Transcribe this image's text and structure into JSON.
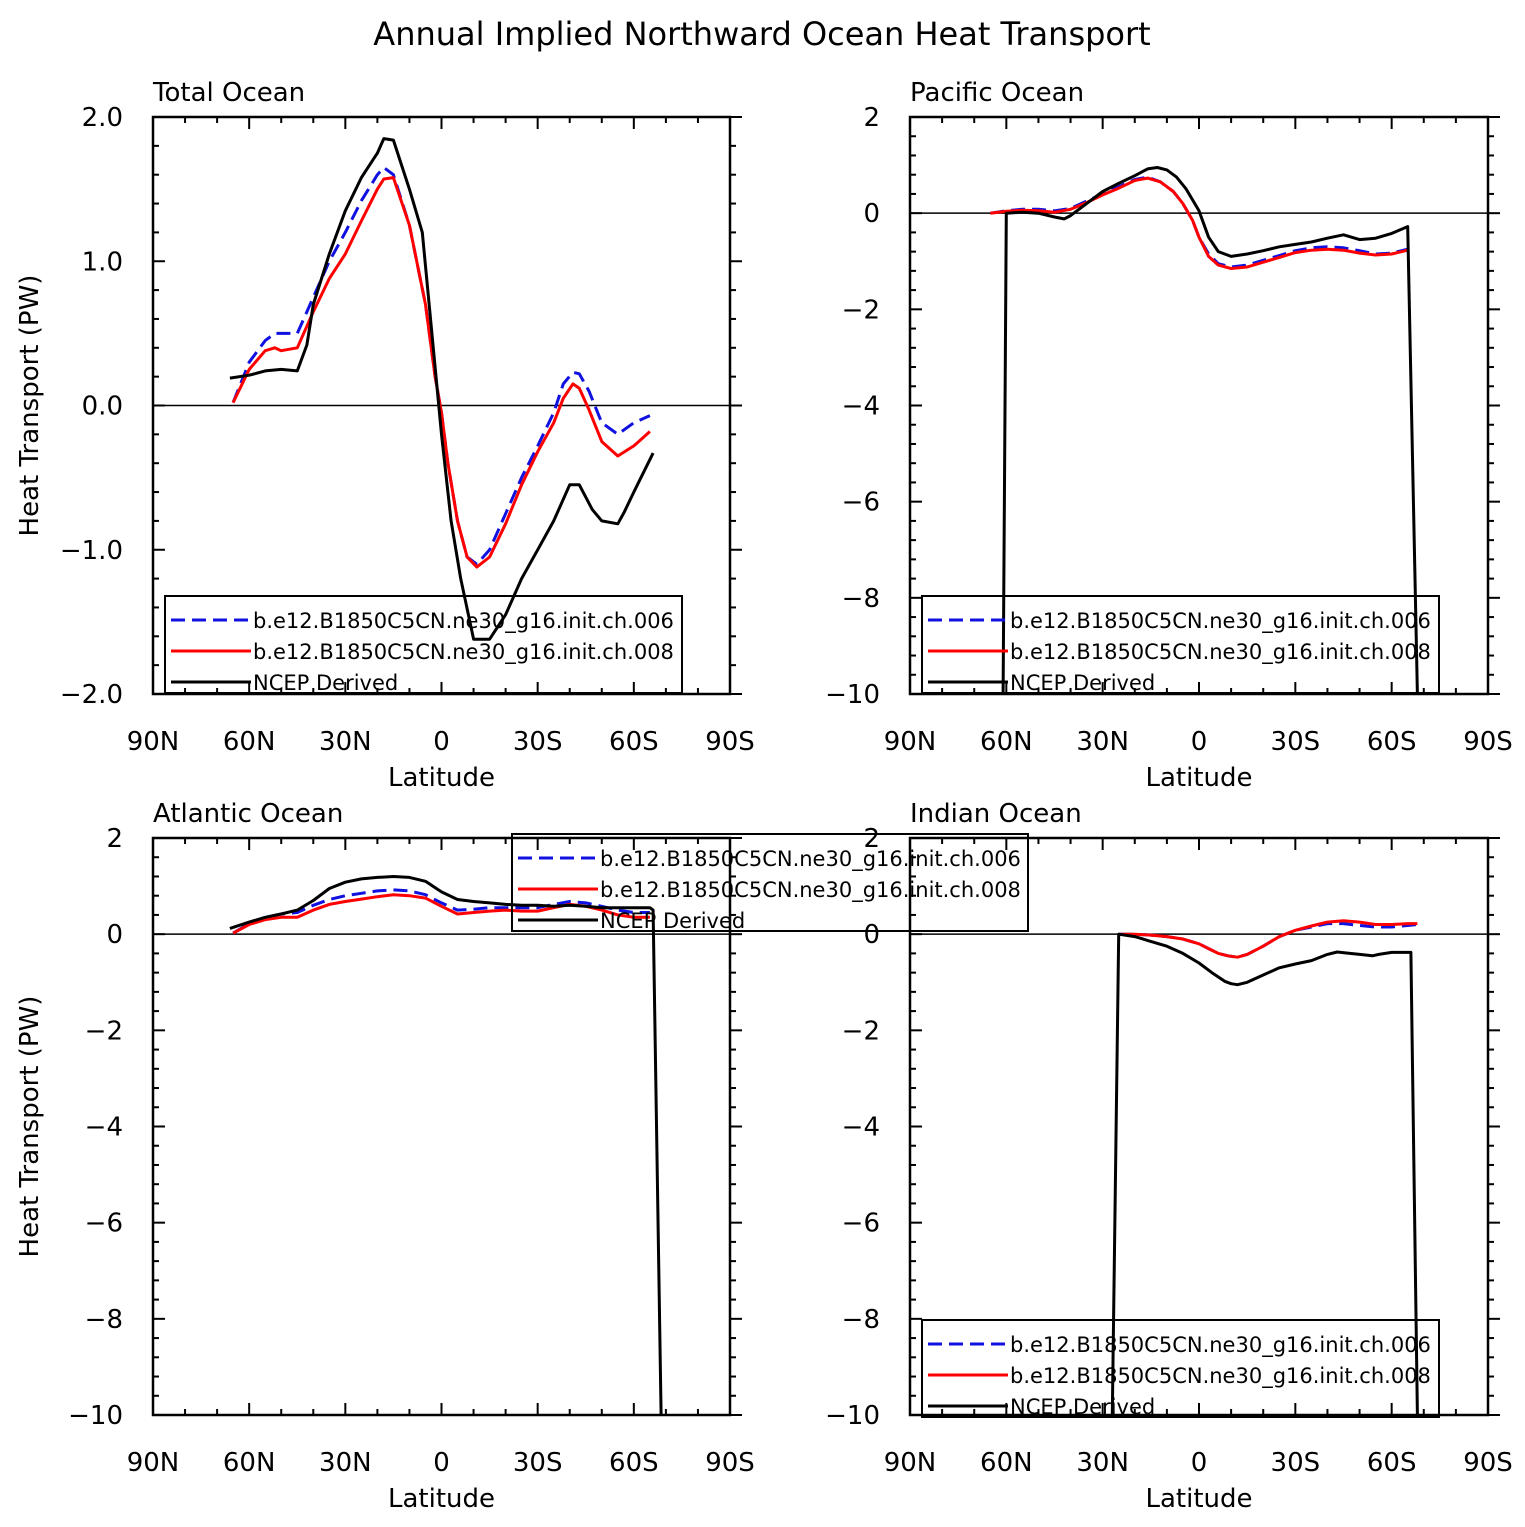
{
  "title": "Annual Implied Northward Ocean Heat Transport",
  "colors": {
    "run006": "#1010e0",
    "run008": "#ff0000",
    "ncep": "#000000"
  },
  "legend_labels": [
    "b.e12.B1850C5CN.ne30_g16.init.ch.006",
    "b.e12.B1850C5CN.ne30_g16.init.ch.008",
    "NCEP Derived"
  ],
  "chart_data": [
    {
      "type": "line",
      "title": "Total Ocean",
      "xlabel": "Latitude",
      "ylabel": "Heat Transport (PW)",
      "xlim": [
        90,
        -90
      ],
      "ylim": [
        -2,
        2
      ],
      "xticks": [
        90,
        60,
        30,
        0,
        -30,
        -60,
        -90
      ],
      "xtick_labels": [
        "90N",
        "60N",
        "30N",
        "0",
        "30S",
        "60S",
        "90S"
      ],
      "yticks": [
        -2,
        -1,
        0,
        1,
        2
      ],
      "ytick_labels": [
        "−2.0",
        "−1.0",
        "0.0",
        "1.0",
        "2.0"
      ],
      "legend_position": "bottom-left",
      "series": [
        {
          "name": "b.e12.B1850C5CN.ne30_g16.init.ch.006",
          "style": "dashed",
          "color_key": "run006",
          "x": [
            65,
            60,
            55,
            52,
            50,
            45,
            40,
            35,
            30,
            25,
            20,
            18,
            15,
            10,
            5,
            2,
            0,
            -2,
            -5,
            -8,
            -11,
            -15,
            -20,
            -25,
            -30,
            -35,
            -38,
            -41,
            -43,
            -46,
            -50,
            -55,
            -60,
            -65
          ],
          "y": [
            0.02,
            0.3,
            0.45,
            0.5,
            0.5,
            0.5,
            0.75,
            1.0,
            1.2,
            1.42,
            1.6,
            1.65,
            1.6,
            1.25,
            0.7,
            0.2,
            -0.05,
            -0.4,
            -0.8,
            -1.05,
            -1.1,
            -1.0,
            -0.75,
            -0.5,
            -0.28,
            -0.05,
            0.15,
            0.23,
            0.22,
            0.1,
            -0.12,
            -0.2,
            -0.12,
            -0.07
          ]
        },
        {
          "name": "b.e12.B1850C5CN.ne30_g16.init.ch.008",
          "style": "solid",
          "color_key": "run008",
          "x": [
            65,
            60,
            55,
            52,
            50,
            45,
            40,
            35,
            30,
            25,
            20,
            18,
            15,
            10,
            5,
            2,
            0,
            -2,
            -5,
            -8,
            -11,
            -15,
            -20,
            -25,
            -30,
            -35,
            -38,
            -41,
            -43,
            -46,
            -50,
            -55,
            -60,
            -65
          ],
          "y": [
            0.02,
            0.25,
            0.38,
            0.4,
            0.38,
            0.4,
            0.65,
            0.88,
            1.05,
            1.28,
            1.5,
            1.57,
            1.58,
            1.25,
            0.7,
            0.2,
            -0.05,
            -0.4,
            -0.8,
            -1.05,
            -1.12,
            -1.05,
            -0.82,
            -0.55,
            -0.32,
            -0.12,
            0.05,
            0.15,
            0.12,
            -0.03,
            -0.25,
            -0.35,
            -0.28,
            -0.18
          ]
        },
        {
          "name": "NCEP Derived",
          "style": "solid",
          "color_key": "ncep",
          "x": [
            66,
            60,
            55,
            50,
            45,
            42,
            40,
            35,
            30,
            25,
            20,
            18,
            15,
            10,
            6,
            3,
            0,
            -3,
            -6,
            -10,
            -15,
            -20,
            -25,
            -30,
            -35,
            -40,
            -43,
            -47,
            -50,
            -55,
            -57,
            -60,
            -66
          ],
          "y": [
            0.19,
            0.21,
            0.24,
            0.25,
            0.24,
            0.42,
            0.7,
            1.05,
            1.35,
            1.58,
            1.75,
            1.85,
            1.84,
            1.5,
            1.2,
            0.5,
            -0.2,
            -0.8,
            -1.2,
            -1.62,
            -1.62,
            -1.45,
            -1.2,
            -1.0,
            -0.8,
            -0.55,
            -0.55,
            -0.72,
            -0.8,
            -0.82,
            -0.74,
            -0.6,
            -0.33
          ]
        }
      ]
    },
    {
      "type": "line",
      "title": "Pacific Ocean",
      "xlabel": "Latitude",
      "ylabel": "",
      "xlim": [
        90,
        -90
      ],
      "ylim": [
        -10,
        2
      ],
      "xticks": [
        90,
        60,
        30,
        0,
        -30,
        -60,
        -90
      ],
      "xtick_labels": [
        "90N",
        "60N",
        "30N",
        "0",
        "30S",
        "60S",
        "90S"
      ],
      "yticks": [
        -10,
        -8,
        -6,
        -4,
        -2,
        0,
        2
      ],
      "ytick_labels": [
        "−10",
        "−8",
        "−6",
        "−4",
        "−2",
        "0",
        "2"
      ],
      "legend_position": "bottom-left",
      "series": [
        {
          "name": "b.e12.B1850C5CN.ne30_g16.init.ch.006",
          "style": "dashed",
          "color_key": "run006",
          "x": [
            65,
            60,
            55,
            50,
            45,
            40,
            35,
            30,
            25,
            20,
            16,
            12,
            8,
            5,
            2,
            0,
            -3,
            -6,
            -10,
            -15,
            -20,
            -25,
            -30,
            -35,
            -40,
            -45,
            -50,
            -55,
            -60,
            -65
          ],
          "y": [
            0.0,
            0.05,
            0.08,
            0.08,
            0.05,
            0.1,
            0.25,
            0.4,
            0.55,
            0.7,
            0.75,
            0.65,
            0.45,
            0.2,
            -0.15,
            -0.5,
            -0.85,
            -1.05,
            -1.12,
            -1.08,
            -0.98,
            -0.88,
            -0.78,
            -0.72,
            -0.7,
            -0.72,
            -0.78,
            -0.85,
            -0.83,
            -0.75
          ]
        },
        {
          "name": "b.e12.B1850C5CN.ne30_g16.init.ch.008",
          "style": "solid",
          "color_key": "run008",
          "x": [
            65,
            60,
            55,
            50,
            45,
            40,
            35,
            30,
            25,
            20,
            16,
            12,
            8,
            5,
            2,
            0,
            -3,
            -6,
            -10,
            -15,
            -20,
            -25,
            -30,
            -35,
            -40,
            -45,
            -50,
            -55,
            -60,
            -65
          ],
          "y": [
            0.0,
            0.04,
            0.06,
            0.05,
            0.02,
            0.08,
            0.22,
            0.38,
            0.52,
            0.68,
            0.73,
            0.65,
            0.45,
            0.2,
            -0.15,
            -0.5,
            -0.9,
            -1.08,
            -1.15,
            -1.12,
            -1.02,
            -0.92,
            -0.82,
            -0.77,
            -0.75,
            -0.77,
            -0.83,
            -0.87,
            -0.85,
            -0.77
          ]
        },
        {
          "name": "NCEP Derived",
          "style": "solid",
          "color_key": "ncep",
          "x": [
            63,
            61,
            60,
            55,
            50,
            45,
            42,
            40,
            35,
            30,
            25,
            20,
            16,
            13,
            10,
            7,
            4,
            0,
            -3,
            -6,
            -10,
            -15,
            -20,
            -25,
            -30,
            -35,
            -40,
            -45,
            -50,
            -55,
            -60,
            -65,
            -68
          ],
          "y": [
            -10,
            -10,
            0.0,
            0.02,
            0.0,
            -0.08,
            -0.12,
            -0.05,
            0.2,
            0.45,
            0.62,
            0.78,
            0.92,
            0.95,
            0.9,
            0.75,
            0.5,
            0.05,
            -0.5,
            -0.8,
            -0.9,
            -0.85,
            -0.78,
            -0.7,
            -0.65,
            -0.6,
            -0.52,
            -0.45,
            -0.55,
            -0.52,
            -0.42,
            -0.28,
            -10
          ]
        }
      ]
    },
    {
      "type": "line",
      "title": "Atlantic Ocean",
      "xlabel": "Latitude",
      "ylabel": "Heat Transport (PW)",
      "xlim": [
        90,
        -90
      ],
      "ylim": [
        -10,
        2
      ],
      "xticks": [
        90,
        60,
        30,
        0,
        -30,
        -60,
        -90
      ],
      "xtick_labels": [
        "90N",
        "60N",
        "30N",
        "0",
        "30S",
        "60S",
        "90S"
      ],
      "yticks": [
        -10,
        -8,
        -6,
        -4,
        -2,
        0,
        2
      ],
      "ytick_labels": [
        "−10",
        "−8",
        "−6",
        "−4",
        "−2",
        "0",
        "2"
      ],
      "legend_position": "top-right",
      "series": [
        {
          "name": "b.e12.B1850C5CN.ne30_g16.init.ch.006",
          "style": "dashed",
          "color_key": "run006",
          "x": [
            65,
            60,
            55,
            50,
            45,
            40,
            35,
            30,
            25,
            20,
            15,
            10,
            5,
            0,
            -5,
            -10,
            -15,
            -20,
            -25,
            -30,
            -35,
            -40,
            -45,
            -50,
            -55,
            -60,
            -65
          ],
          "y": [
            0.02,
            0.22,
            0.35,
            0.42,
            0.45,
            0.6,
            0.72,
            0.8,
            0.85,
            0.9,
            0.92,
            0.9,
            0.82,
            0.65,
            0.5,
            0.52,
            0.55,
            0.55,
            0.55,
            0.55,
            0.62,
            0.68,
            0.65,
            0.58,
            0.5,
            0.45,
            0.45
          ]
        },
        {
          "name": "b.e12.B1850C5CN.ne30_g16.init.ch.008",
          "style": "solid",
          "color_key": "run008",
          "x": [
            65,
            60,
            55,
            50,
            45,
            40,
            35,
            30,
            25,
            20,
            15,
            10,
            5,
            0,
            -5,
            -10,
            -15,
            -20,
            -25,
            -30,
            -35,
            -40,
            -45,
            -50,
            -55,
            -60,
            -65
          ],
          "y": [
            0.02,
            0.2,
            0.3,
            0.35,
            0.35,
            0.5,
            0.62,
            0.68,
            0.73,
            0.78,
            0.82,
            0.8,
            0.75,
            0.58,
            0.42,
            0.45,
            0.48,
            0.5,
            0.48,
            0.48,
            0.55,
            0.62,
            0.58,
            0.5,
            0.4,
            0.35,
            0.35
          ]
        },
        {
          "name": "NCEP Derived",
          "style": "solid",
          "color_key": "ncep",
          "x": [
            66,
            60,
            55,
            50,
            45,
            40,
            35,
            30,
            25,
            20,
            15,
            10,
            5,
            0,
            -5,
            -10,
            -15,
            -20,
            -25,
            -30,
            -35,
            -40,
            -45,
            -50,
            -55,
            -60,
            -65,
            -66,
            -68.5
          ],
          "y": [
            0.12,
            0.25,
            0.35,
            0.42,
            0.5,
            0.7,
            0.95,
            1.08,
            1.15,
            1.18,
            1.2,
            1.18,
            1.1,
            0.88,
            0.72,
            0.68,
            0.65,
            0.62,
            0.6,
            0.6,
            0.58,
            0.6,
            0.58,
            0.55,
            0.55,
            0.55,
            0.55,
            0.5,
            -10
          ]
        }
      ]
    },
    {
      "type": "line",
      "title": "Indian Ocean",
      "xlabel": "Latitude",
      "ylabel": "",
      "xlim": [
        90,
        -90
      ],
      "ylim": [
        -10,
        2
      ],
      "xticks": [
        90,
        60,
        30,
        0,
        -30,
        -60,
        -90
      ],
      "xtick_labels": [
        "90N",
        "60N",
        "30N",
        "0",
        "30S",
        "60S",
        "90S"
      ],
      "yticks": [
        -10,
        -8,
        -6,
        -4,
        -2,
        0,
        2
      ],
      "ytick_labels": [
        "−10",
        "−8",
        "−6",
        "−4",
        "−2",
        "0",
        "2"
      ],
      "legend_position": "bottom-left",
      "series": [
        {
          "name": "b.e12.B1850C5CN.ne30_g16.init.ch.006",
          "style": "dashed",
          "color_key": "run006",
          "x": [
            25,
            20,
            15,
            10,
            5,
            0,
            -3,
            -6,
            -9,
            -12,
            -15,
            -20,
            -25,
            -30,
            -35,
            -40,
            -45,
            -50,
            -55,
            -60,
            -65,
            -68
          ],
          "y": [
            0.0,
            0.0,
            -0.02,
            -0.05,
            -0.1,
            -0.2,
            -0.3,
            -0.4,
            -0.45,
            -0.48,
            -0.42,
            -0.25,
            -0.05,
            0.08,
            0.15,
            0.22,
            0.22,
            0.18,
            0.15,
            0.15,
            0.18,
            0.2
          ]
        },
        {
          "name": "b.e12.B1850C5CN.ne30_g16.init.ch.008",
          "style": "solid",
          "color_key": "run008",
          "x": [
            25,
            20,
            15,
            10,
            5,
            0,
            -3,
            -6,
            -9,
            -12,
            -15,
            -20,
            -25,
            -30,
            -35,
            -40,
            -45,
            -50,
            -55,
            -60,
            -65,
            -68
          ],
          "y": [
            0.0,
            0.0,
            -0.02,
            -0.05,
            -0.1,
            -0.2,
            -0.3,
            -0.4,
            -0.45,
            -0.48,
            -0.42,
            -0.25,
            -0.05,
            0.08,
            0.17,
            0.25,
            0.28,
            0.25,
            0.2,
            0.2,
            0.22,
            0.22
          ]
        },
        {
          "name": "NCEP Derived",
          "style": "solid",
          "color_key": "ncep",
          "x": [
            27,
            25,
            20,
            15,
            10,
            5,
            0,
            -4,
            -8,
            -10,
            -12,
            -15,
            -20,
            -25,
            -30,
            -35,
            -40,
            -43,
            -47,
            -50,
            -54,
            -56,
            -60,
            -64,
            -66,
            -68
          ],
          "y": [
            -10,
            0.0,
            -0.05,
            -0.15,
            -0.25,
            -0.4,
            -0.6,
            -0.8,
            -0.98,
            -1.03,
            -1.05,
            -1.0,
            -0.85,
            -0.7,
            -0.62,
            -0.55,
            -0.42,
            -0.37,
            -0.4,
            -0.42,
            -0.45,
            -0.42,
            -0.38,
            -0.38,
            -0.38,
            -10
          ]
        }
      ]
    }
  ]
}
